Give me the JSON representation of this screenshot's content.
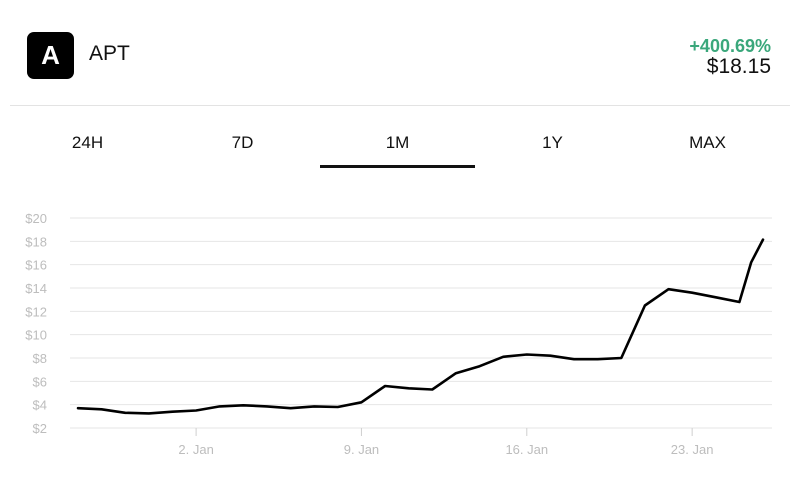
{
  "asset": {
    "logo_letter": "A",
    "ticker": "APT",
    "change": "+400.69%",
    "price": "$18.15",
    "change_color": "#3aa77b"
  },
  "tabs": [
    {
      "label": "24H",
      "active": false
    },
    {
      "label": "7D",
      "active": false
    },
    {
      "label": "1M",
      "active": true
    },
    {
      "label": "1Y",
      "active": false
    },
    {
      "label": "MAX",
      "active": false
    }
  ],
  "chart_data": {
    "type": "line",
    "title": "",
    "xlabel": "",
    "ylabel": "",
    "ylim": [
      2,
      20
    ],
    "y_ticks": [
      "$20",
      "$18",
      "$16",
      "$14",
      "$12",
      "$10",
      "$8",
      "$6",
      "$4",
      "$2"
    ],
    "x_ticks": [
      "2. Jan",
      "9. Jan",
      "16. Jan",
      "23. Jan"
    ],
    "x_range": [
      "Dec 28",
      "Jan 26"
    ],
    "grid": true,
    "series": [
      {
        "color": "#000000",
        "points": [
          {
            "x": "Dec 28",
            "y": 3.7
          },
          {
            "x": "Dec 29",
            "y": 3.6
          },
          {
            "x": "Dec 30",
            "y": 3.3
          },
          {
            "x": "Dec 31",
            "y": 3.25
          },
          {
            "x": "Jan 1",
            "y": 3.4
          },
          {
            "x": "Jan 2",
            "y": 3.5
          },
          {
            "x": "Jan 3",
            "y": 3.85
          },
          {
            "x": "Jan 4",
            "y": 3.95
          },
          {
            "x": "Jan 5",
            "y": 3.85
          },
          {
            "x": "Jan 6",
            "y": 3.7
          },
          {
            "x": "Jan 7",
            "y": 3.85
          },
          {
            "x": "Jan 8",
            "y": 3.8
          },
          {
            "x": "Jan 9",
            "y": 4.2
          },
          {
            "x": "Jan 10",
            "y": 5.6
          },
          {
            "x": "Jan 11",
            "y": 5.4
          },
          {
            "x": "Jan 12",
            "y": 5.3
          },
          {
            "x": "Jan 13",
            "y": 6.7
          },
          {
            "x": "Jan 14",
            "y": 7.3
          },
          {
            "x": "Jan 15",
            "y": 8.1
          },
          {
            "x": "Jan 16",
            "y": 8.3
          },
          {
            "x": "Jan 17",
            "y": 8.2
          },
          {
            "x": "Jan 18",
            "y": 7.9
          },
          {
            "x": "Jan 19",
            "y": 7.9
          },
          {
            "x": "Jan 20",
            "y": 8.0
          },
          {
            "x": "Jan 21",
            "y": 12.5
          },
          {
            "x": "Jan 22",
            "y": 13.9
          },
          {
            "x": "Jan 23",
            "y": 13.6
          },
          {
            "x": "Jan 24",
            "y": 13.2
          },
          {
            "x": "Jan 25",
            "y": 12.8
          },
          {
            "x": "Jan 25.5",
            "y": 16.2
          },
          {
            "x": "Jan 26",
            "y": 18.15
          }
        ]
      }
    ]
  }
}
